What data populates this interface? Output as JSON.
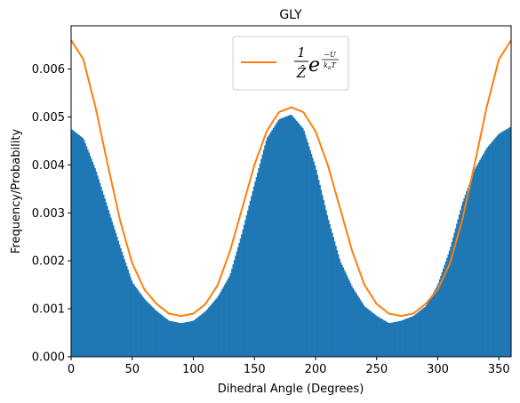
{
  "chart_data": {
    "type": "bar",
    "title": "GLY",
    "xlabel": "Dihedral Angle (Degrees)",
    "ylabel": "Frequency/Probability",
    "xlim": [
      0,
      360
    ],
    "ylim": [
      0,
      0.0069
    ],
    "grid": false,
    "legend_placement": "upper center",
    "x_ticks": [
      0,
      50,
      100,
      150,
      200,
      250,
      300,
      350
    ],
    "x_tick_labels": [
      "0",
      "50",
      "100",
      "150",
      "200",
      "250",
      "300",
      "350"
    ],
    "y_ticks": [
      0.0,
      0.001,
      0.002,
      0.003,
      0.004,
      0.005,
      0.006
    ],
    "y_tick_labels": [
      "0.000",
      "0.001",
      "0.002",
      "0.003",
      "0.004",
      "0.005",
      "0.006"
    ],
    "histogram": {
      "name": "histogram",
      "color": "#1f77b4",
      "bin_width_deg": 1,
      "x": [
        0,
        10,
        20,
        30,
        40,
        50,
        60,
        70,
        80,
        90,
        100,
        110,
        120,
        130,
        140,
        150,
        160,
        170,
        180,
        190,
        200,
        210,
        220,
        230,
        240,
        250,
        260,
        270,
        280,
        290,
        300,
        310,
        320,
        330,
        340,
        350,
        360
      ],
      "values": [
        0.00475,
        0.00455,
        0.0039,
        0.0031,
        0.0023,
        0.00155,
        0.0012,
        0.00095,
        0.00075,
        0.0007,
        0.00075,
        0.00095,
        0.00125,
        0.0017,
        0.0026,
        0.0036,
        0.00455,
        0.00495,
        0.00505,
        0.00475,
        0.00395,
        0.0029,
        0.002,
        0.00145,
        0.00105,
        0.00085,
        0.0007,
        0.00075,
        0.00085,
        0.00105,
        0.0015,
        0.00225,
        0.0032,
        0.0039,
        0.00435,
        0.00465,
        0.0048
      ]
    },
    "fit_curve": {
      "legend_label": {
        "numerator": "1",
        "denominator": "Ẑ",
        "base": "e",
        "exp_numerator": "−U",
        "exp_denominator": "k",
        "exp_den_subscript": "B",
        "exp_den_suffix": "T"
      },
      "color": "#ff7f0e",
      "x": [
        0,
        10,
        20,
        30,
        40,
        50,
        60,
        70,
        80,
        90,
        100,
        110,
        120,
        130,
        140,
        150,
        160,
        170,
        180,
        190,
        200,
        210,
        220,
        230,
        240,
        250,
        260,
        270,
        280,
        290,
        300,
        310,
        320,
        330,
        340,
        350,
        360
      ],
      "values": [
        0.0066,
        0.0062,
        0.0052,
        0.004,
        0.00285,
        0.00195,
        0.0014,
        0.0011,
        0.0009,
        0.00085,
        0.0009,
        0.0011,
        0.0015,
        0.0022,
        0.0031,
        0.004,
        0.0047,
        0.0051,
        0.0052,
        0.0051,
        0.0047,
        0.004,
        0.0031,
        0.0022,
        0.0015,
        0.0011,
        0.0009,
        0.00085,
        0.0009,
        0.0011,
        0.0014,
        0.00195,
        0.00285,
        0.004,
        0.0052,
        0.0062,
        0.0066
      ]
    }
  }
}
